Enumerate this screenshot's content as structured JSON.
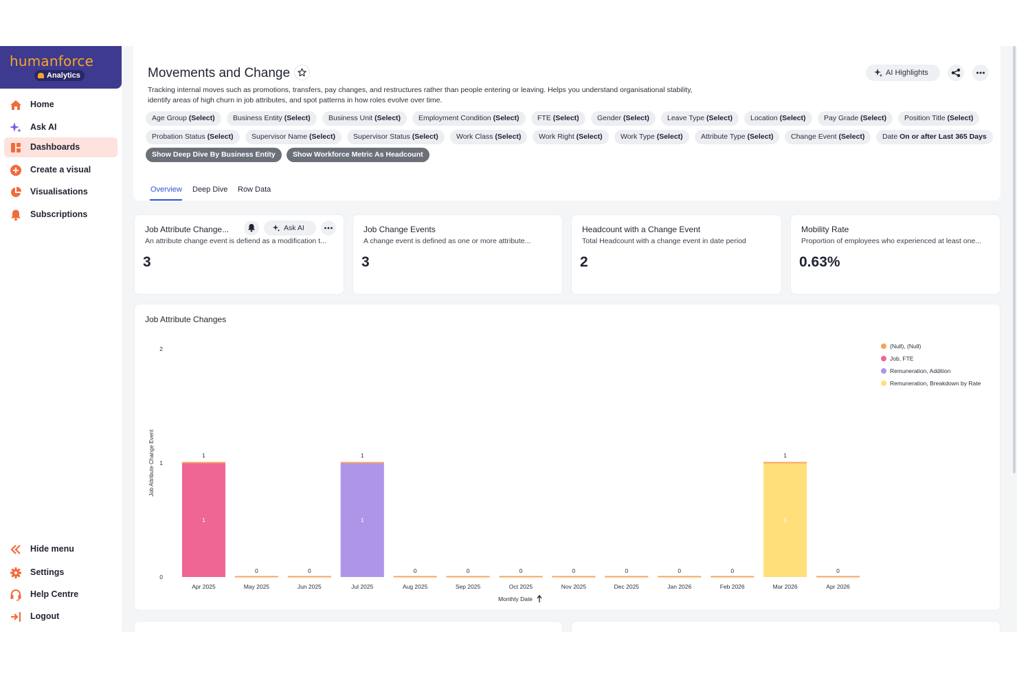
{
  "brand": {
    "name": "humanforce",
    "sub": "Analytics"
  },
  "nav": {
    "items": [
      {
        "label": "Home",
        "icon": "home-icon"
      },
      {
        "label": "Ask AI",
        "icon": "sparkle-icon"
      },
      {
        "label": "Dashboards",
        "icon": "dashboard-icon",
        "active": true
      },
      {
        "label": "Create a visual",
        "icon": "plus-circle-icon"
      },
      {
        "label": "Visualisations",
        "icon": "pie-chart-icon"
      },
      {
        "label": "Subscriptions",
        "icon": "bell-icon"
      }
    ],
    "bottom": [
      {
        "label": "Hide menu",
        "icon": "chevrons-left-icon"
      },
      {
        "label": "Settings",
        "icon": "gear-icon"
      },
      {
        "label": "Help Centre",
        "icon": "headset-icon"
      },
      {
        "label": "Logout",
        "icon": "logout-icon"
      }
    ]
  },
  "header": {
    "title": "Movements and Change",
    "description": "Tracking internal moves such as promotions, transfers, pay changes, and restructures rather than people entering or leaving. Helps you understand organisational stability, identify areas of high churn in job attributes, and spot patterns in how roles evolve over time.",
    "ai_highlights": "AI Highlights",
    "filters_row1": [
      {
        "name": "Age Group",
        "value": "(Select)"
      },
      {
        "name": "Business Entity",
        "value": "(Select)"
      },
      {
        "name": "Business Unit",
        "value": "(Select)"
      },
      {
        "name": "Employment Condition",
        "value": "(Select)"
      },
      {
        "name": "FTE",
        "value": "(Select)"
      },
      {
        "name": "Gender",
        "value": "(Select)"
      },
      {
        "name": "Leave Type",
        "value": "(Select)"
      },
      {
        "name": "Location",
        "value": "(Select)"
      },
      {
        "name": "Pay Grade",
        "value": "(Select)"
      },
      {
        "name": "Position Title",
        "value": "(Select)"
      }
    ],
    "filters_row2": [
      {
        "name": "Probation Status",
        "value": "(Select)"
      },
      {
        "name": "Supervisor Name",
        "value": "(Select)"
      },
      {
        "name": "Supervisor Status",
        "value": "(Select)"
      },
      {
        "name": "Work Class",
        "value": "(Select)"
      },
      {
        "name": "Work Right",
        "value": "(Select)"
      },
      {
        "name": "Work Type",
        "value": "(Select)"
      },
      {
        "name": "Attribute Type",
        "value": "(Select)"
      },
      {
        "name": "Change Event",
        "value": "(Select)"
      },
      {
        "name": "Date",
        "value": "On or after Last 365 Days"
      }
    ],
    "parameters": [
      "Show Deep Dive By Business Entity",
      "Show Workforce Metric As Headcount"
    ],
    "tabs": [
      "Overview",
      "Deep Dive",
      "Row Data"
    ]
  },
  "kpis": [
    {
      "title": "Job Attribute Change...",
      "desc": "An attribute change event is defiend as a modification t...",
      "value": "3",
      "ask_ai": "Ask AI"
    },
    {
      "title": "Job Change Events",
      "desc": "A change event is defined as one or more attribute...",
      "value": "3"
    },
    {
      "title": "Headcount with a Change Event",
      "desc": "Total Headcount with a change event in date period",
      "value": "2"
    },
    {
      "title": "Mobility Rate",
      "desc": "Proportion of employees who experienced at least one...",
      "value": "0.63%"
    }
  ],
  "chart_title": "Job Attribute Changes",
  "chart_data": {
    "type": "bar",
    "stacked": true,
    "title": "Job Attribute Changes",
    "xlabel": "Monthly Date",
    "ylabel": "Job Attribute Change Event",
    "ylim": [
      0,
      2
    ],
    "yticks": [
      0,
      1,
      2
    ],
    "categories": [
      "Apr 2025",
      "May 2025",
      "Jun 2025",
      "Jul 2025",
      "Aug 2025",
      "Sep 2025",
      "Oct 2025",
      "Nov 2025",
      "Dec 2025",
      "Jan 2026",
      "Feb 2026",
      "Mar 2026",
      "Apr 2026"
    ],
    "totals": [
      1,
      0,
      0,
      1,
      0,
      0,
      0,
      0,
      0,
      0,
      0,
      1,
      0
    ],
    "series": [
      {
        "name": "(Null), (Null)",
        "color": "#f7a35c",
        "values": [
          0,
          0,
          0,
          0,
          0,
          0,
          0,
          0,
          0,
          0,
          0,
          0,
          0
        ]
      },
      {
        "name": "Job, FTE",
        "color": "#ef6593",
        "values": [
          1,
          0,
          0,
          0,
          0,
          0,
          0,
          0,
          0,
          0,
          0,
          0,
          0
        ]
      },
      {
        "name": "Remuneration, Addition",
        "color": "#ae95e8",
        "values": [
          0,
          0,
          0,
          1,
          0,
          0,
          0,
          0,
          0,
          0,
          0,
          0,
          0
        ]
      },
      {
        "name": "Remuneration, Breakdown by Rate",
        "color": "#fedf7a",
        "values": [
          0,
          0,
          0,
          0,
          0,
          0,
          0,
          0,
          0,
          0,
          0,
          1,
          0
        ]
      }
    ],
    "legend": "top-right",
    "grid": false
  }
}
